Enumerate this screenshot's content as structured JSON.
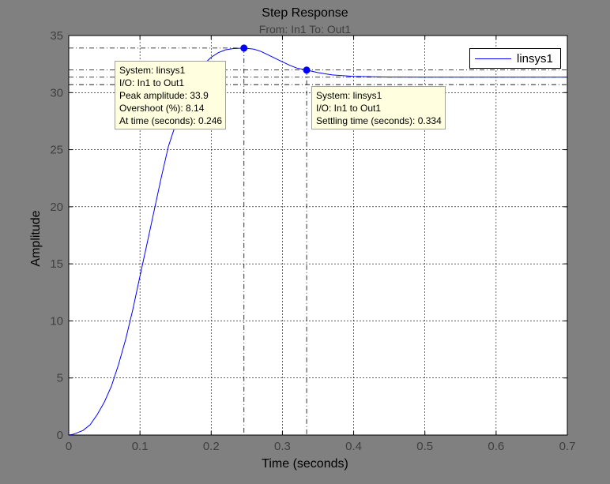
{
  "chart_data": {
    "type": "line",
    "title": "Step Response",
    "subtitle": "From: In1  To: Out1",
    "xlabel": "Time (seconds)",
    "ylabel": "Amplitude",
    "xlim": [
      0,
      0.7
    ],
    "ylim": [
      0,
      35
    ],
    "x_ticks": [
      0,
      0.1,
      0.2,
      0.3,
      0.4,
      0.5,
      0.6,
      0.7
    ],
    "x_tick_labels": [
      "0",
      "0.1",
      "0.2",
      "0.3",
      "0.4",
      "0.5",
      "0.6",
      "0.7"
    ],
    "y_ticks": [
      0,
      5,
      10,
      15,
      20,
      25,
      30,
      35
    ],
    "y_tick_labels": [
      "0",
      "5",
      "10",
      "15",
      "20",
      "25",
      "30",
      "35"
    ],
    "grid": true,
    "legend_position": "top-right",
    "series": [
      {
        "name": "linsys1",
        "color": "#0000ff",
        "x": [
          0,
          0.005,
          0.01,
          0.02,
          0.03,
          0.04,
          0.05,
          0.06,
          0.07,
          0.08,
          0.09,
          0.1,
          0.11,
          0.12,
          0.13,
          0.14,
          0.15,
          0.16,
          0.17,
          0.18,
          0.19,
          0.2,
          0.21,
          0.22,
          0.23,
          0.246,
          0.26,
          0.27,
          0.28,
          0.29,
          0.3,
          0.31,
          0.32,
          0.334,
          0.35,
          0.37,
          0.4,
          0.45,
          0.5,
          0.55,
          0.6,
          0.65,
          0.7
        ],
        "y": [
          0,
          0.05,
          0.15,
          0.4,
          0.9,
          1.8,
          2.9,
          4.3,
          6.2,
          8.4,
          11.0,
          13.9,
          16.8,
          19.7,
          22.6,
          25.3,
          27.2,
          28.9,
          30.5,
          31.6,
          32.5,
          33.1,
          33.5,
          33.75,
          33.85,
          33.9,
          33.8,
          33.6,
          33.3,
          33.0,
          32.7,
          32.4,
          32.15,
          31.97,
          31.75,
          31.55,
          31.42,
          31.36,
          31.35,
          31.35,
          31.35,
          31.35,
          31.35
        ]
      }
    ],
    "reference_lines": {
      "final_value": 31.35,
      "settling_band": [
        30.7,
        32.0
      ],
      "peak_value": 33.9,
      "peak_time": 0.246,
      "settling_time": 0.334,
      "settling_value": 31.97
    },
    "annotations": [
      {
        "name": "peak",
        "x": 0.246,
        "y": 33.9,
        "lines": [
          "System: linsys1",
          "I/O: In1 to Out1",
          "Peak amplitude: 33.9",
          "Overshoot (%): 8.14",
          "At time (seconds): 0.246"
        ]
      },
      {
        "name": "settling",
        "x": 0.334,
        "y": 31.97,
        "lines": [
          "System: linsys1",
          "I/O: In1 to Out1",
          "Settling time (seconds): 0.334"
        ]
      }
    ]
  }
}
